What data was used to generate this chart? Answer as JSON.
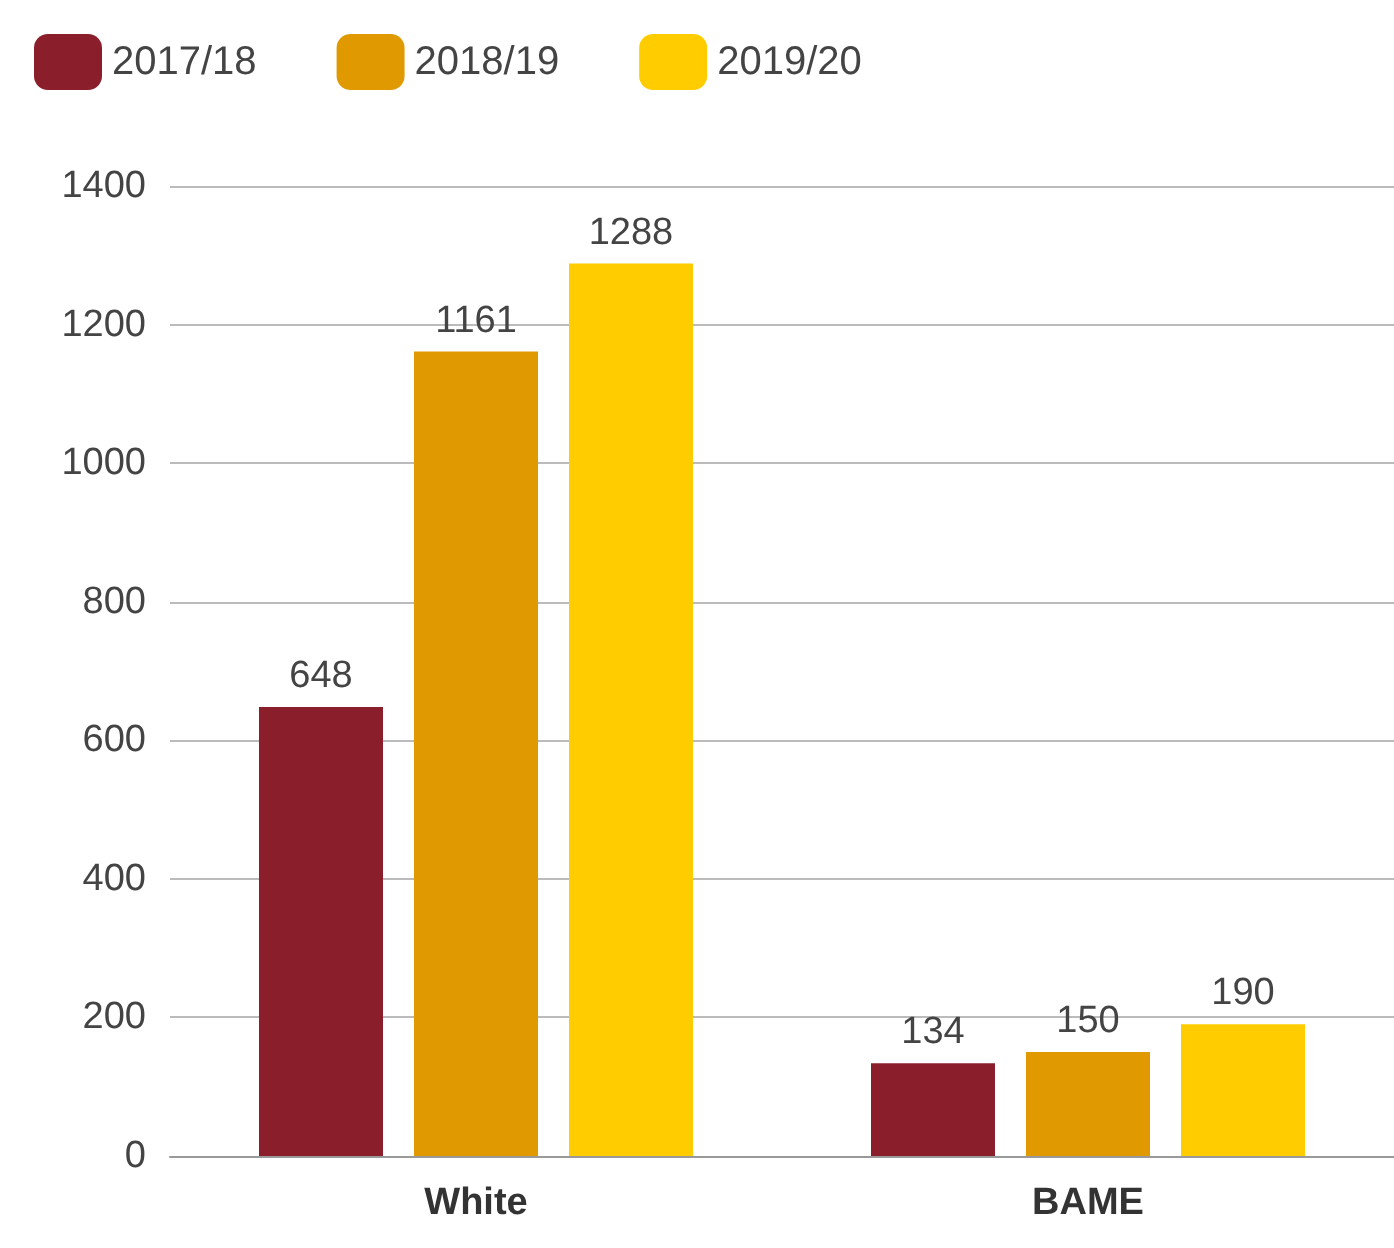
{
  "chart_data": {
    "type": "bar",
    "categories": [
      "White",
      "BAME"
    ],
    "series": [
      {
        "name": "2017/18",
        "color": "#8b1e2b",
        "values": [
          648,
          134
        ]
      },
      {
        "name": "2018/19",
        "color": "#e09a00",
        "values": [
          1161,
          150
        ]
      },
      {
        "name": "2019/20",
        "color": "#ffcc00",
        "values": [
          1288,
          190
        ]
      }
    ],
    "ylim": [
      0,
      1400
    ],
    "yticks": [
      0,
      200,
      400,
      600,
      800,
      1000,
      1200,
      1400
    ],
    "grid": "y",
    "legend": "top left",
    "data_labels": true
  }
}
